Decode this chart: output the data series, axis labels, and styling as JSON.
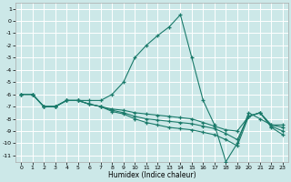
{
  "title": "",
  "xlabel": "Humidex (Indice chaleur)",
  "ylabel": "",
  "background_color": "#cce8e8",
  "grid_color": "#ffffff",
  "line_color": "#1a7a6a",
  "ylim": [
    -11.5,
    1.5
  ],
  "xlim": [
    -0.5,
    23.5
  ],
  "yticks": [
    1,
    0,
    -1,
    -2,
    -3,
    -4,
    -5,
    -6,
    -7,
    -8,
    -9,
    -10,
    -11
  ],
  "xticks": [
    0,
    1,
    2,
    3,
    4,
    5,
    6,
    7,
    8,
    9,
    10,
    11,
    12,
    13,
    14,
    15,
    16,
    17,
    18,
    19,
    20,
    21,
    22,
    23
  ],
  "lines": [
    {
      "x": [
        0,
        1,
        2,
        3,
        4,
        5,
        6,
        7,
        8,
        9,
        10,
        11,
        12,
        13,
        14,
        15,
        16,
        17,
        18,
        19,
        20,
        21,
        22,
        23
      ],
      "y": [
        -6.0,
        -6.0,
        -7.0,
        -7.0,
        -6.5,
        -6.5,
        -6.5,
        -6.5,
        -6.0,
        -5.0,
        -3.0,
        -2.0,
        -1.2,
        -0.5,
        0.5,
        -3.0,
        -6.5,
        -8.5,
        -11.5,
        -10.0,
        -7.5,
        -8.0,
        -8.5,
        -8.5
      ]
    },
    {
      "x": [
        0,
        1,
        2,
        3,
        4,
        5,
        6,
        7,
        8,
        9,
        10,
        11,
        12,
        13,
        14,
        15,
        16,
        17,
        18,
        19,
        20,
        21,
        22,
        23
      ],
      "y": [
        -6.0,
        -6.0,
        -7.0,
        -7.0,
        -6.5,
        -6.5,
        -6.8,
        -7.0,
        -7.2,
        -7.3,
        -7.5,
        -7.6,
        -7.7,
        -7.8,
        -7.9,
        -8.0,
        -8.3,
        -8.6,
        -8.9,
        -9.0,
        -7.8,
        -7.5,
        -8.5,
        -8.7
      ]
    },
    {
      "x": [
        0,
        1,
        2,
        3,
        4,
        5,
        6,
        7,
        8,
        9,
        10,
        11,
        12,
        13,
        14,
        15,
        16,
        17,
        18,
        19,
        20,
        21,
        22,
        23
      ],
      "y": [
        -6.0,
        -6.0,
        -7.0,
        -7.0,
        -6.5,
        -6.5,
        -6.8,
        -7.0,
        -7.3,
        -7.5,
        -7.8,
        -8.0,
        -8.1,
        -8.2,
        -8.3,
        -8.4,
        -8.6,
        -8.8,
        -9.2,
        -9.7,
        -7.8,
        -7.5,
        -8.6,
        -9.0
      ]
    },
    {
      "x": [
        0,
        1,
        2,
        3,
        4,
        5,
        6,
        7,
        8,
        9,
        10,
        11,
        12,
        13,
        14,
        15,
        16,
        17,
        18,
        19,
        20,
        21,
        22,
        23
      ],
      "y": [
        -6.0,
        -6.0,
        -7.0,
        -7.0,
        -6.5,
        -6.5,
        -6.8,
        -7.0,
        -7.4,
        -7.6,
        -8.0,
        -8.3,
        -8.5,
        -8.7,
        -8.8,
        -8.9,
        -9.1,
        -9.3,
        -9.7,
        -10.2,
        -7.8,
        -7.5,
        -8.7,
        -9.3
      ]
    }
  ]
}
